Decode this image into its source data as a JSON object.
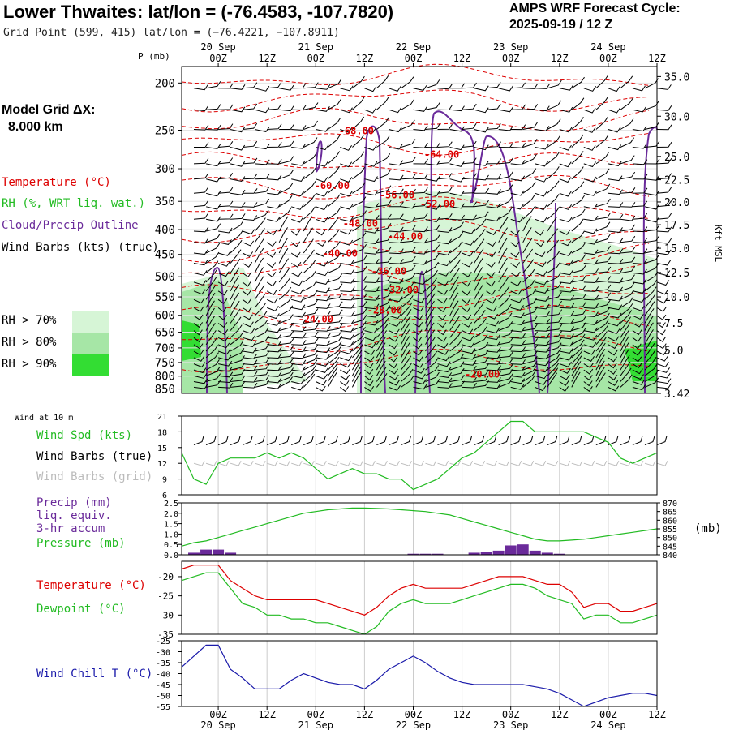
{
  "header": {
    "title": "Lower Thwaites:  lat/lon = (-76.4583, -107.7820)",
    "subtitle": "Grid Point (599, 415) lat/lon = (−76.4221, −107.8911)",
    "cycle_title": "AMPS WRF Forecast Cycle:",
    "cycle_value": "2025-09-19 / 12  Z",
    "grid_label": "Model Grid ΔX:",
    "grid_value": "8.000 km"
  },
  "legend": {
    "temperature": "Temperature (°C)",
    "rh": "RH (%, WRT liq. wat.)",
    "cloud": "Cloud/Precip Outline",
    "wind": "Wind Barbs (kts) (true)",
    "rh70": "RH > 70%",
    "rh80": "RH > 80%",
    "rh90": "RH > 90%"
  },
  "colors": {
    "temperature": "#dd0000",
    "rh": "#22bb22",
    "cloud": "#6a2a9a",
    "windchill": "#1a1aaa",
    "rh70": "#d6f5d6",
    "rh80": "#a6e6a6",
    "rh90": "#33dd33"
  },
  "time_axis": {
    "ticks": [
      "00Z",
      "12Z",
      "00Z",
      "12Z",
      "00Z",
      "12Z",
      "00Z",
      "12Z",
      "00Z",
      "12Z"
    ],
    "tick_hours": [
      12,
      24,
      36,
      48,
      60,
      72,
      84,
      96,
      108,
      120
    ],
    "dates_top": [
      "20 Sep",
      "21 Sep",
      "22 Sep",
      "23 Sep",
      "24 Sep"
    ],
    "dates_bottom": [
      "20 Sep",
      "21 Sep",
      "22 Sep",
      "23 Sep",
      "24 Sep"
    ],
    "date_hours": [
      12,
      36,
      60,
      84,
      108
    ],
    "range_hours": [
      3,
      120
    ]
  },
  "chart_data": [
    {
      "type": "heatmap",
      "ylabel": "P (mb)",
      "y2label": "Kft MSL",
      "pressure_ticks": [
        200,
        250,
        300,
        350,
        400,
        450,
        500,
        550,
        600,
        650,
        700,
        750,
        800,
        850
      ],
      "height_ticks": [
        "35.0",
        "30.0",
        "25.0",
        "22.5",
        "20.0",
        "17.5",
        "15.0",
        "12.5",
        "10.0",
        "7.5",
        "5.0",
        "3.42"
      ],
      "height_tick_pressure": [
        194,
        234,
        283,
        316,
        351,
        391,
        437,
        490,
        550,
        622,
        707,
        868
      ],
      "ylim": [
        185,
        868
      ],
      "temperature_labels": [
        {
          "text": "-68.00",
          "hour": 46,
          "p": 255
        },
        {
          "text": "-64.00",
          "hour": 67,
          "p": 285
        },
        {
          "text": "-60.00",
          "hour": 40,
          "p": 330
        },
        {
          "text": "-56.00",
          "hour": 56,
          "p": 345
        },
        {
          "text": "-52.00",
          "hour": 66,
          "p": 360
        },
        {
          "text": "-48.00",
          "hour": 47,
          "p": 395
        },
        {
          "text": "-44.00",
          "hour": 58,
          "p": 420
        },
        {
          "text": "-40.00",
          "hour": 42,
          "p": 455
        },
        {
          "text": "-36.00",
          "hour": 54,
          "p": 495
        },
        {
          "text": "-32.00",
          "hour": 57,
          "p": 540
        },
        {
          "text": "-28.00",
          "hour": 53,
          "p": 595
        },
        {
          "text": "-24.00",
          "hour": 36,
          "p": 620
        },
        {
          "text": "-20.00",
          "hour": 77,
          "p": 805
        }
      ]
    },
    {
      "type": "line",
      "series": [
        {
          "name": "Wind Spd (kts)",
          "color": "#22bb22",
          "x": [
            3,
            6,
            9,
            12,
            15,
            18,
            21,
            24,
            27,
            30,
            33,
            36,
            39,
            42,
            45,
            48,
            51,
            54,
            57,
            60,
            63,
            66,
            69,
            72,
            75,
            78,
            81,
            84,
            87,
            90,
            93,
            96,
            99,
            102,
            105,
            108,
            111,
            114,
            117,
            120
          ],
          "values": [
            14,
            9,
            8,
            12,
            13,
            13,
            13,
            14,
            13,
            14,
            13,
            11,
            9,
            10,
            11,
            10,
            10,
            9,
            9,
            7,
            8,
            9,
            11,
            13,
            14,
            16,
            18,
            20,
            20,
            18,
            18,
            18,
            18,
            18,
            17,
            16,
            13,
            12,
            13,
            14
          ]
        }
      ],
      "wind_label_small": "Wind at 10 m",
      "labels": [
        "Wind Spd (kts)",
        "Wind Barbs (true)",
        "Wind Barbs (grid)"
      ],
      "yticks": [
        6,
        9,
        12,
        15,
        18,
        21
      ],
      "ylim": [
        6,
        21
      ]
    },
    {
      "type": "bar",
      "labels": [
        "Precip (mm)",
        "liq. equiv.",
        "3-hr accum",
        "Pressure (mb)"
      ],
      "ylabel": "(mb)",
      "precip_x": [
        6,
        9,
        12,
        15,
        60,
        63,
        66,
        75,
        78,
        81,
        84,
        87,
        90,
        93,
        96
      ],
      "precip_values": [
        0.1,
        0.25,
        0.25,
        0.1,
        0.05,
        0.05,
        0.05,
        0.1,
        0.15,
        0.2,
        0.45,
        0.5,
        0.2,
        0.1,
        0.05
      ],
      "pressure": {
        "x": [
          3,
          6,
          9,
          12,
          15,
          18,
          21,
          24,
          27,
          30,
          33,
          36,
          39,
          42,
          45,
          48,
          51,
          54,
          57,
          60,
          63,
          66,
          69,
          72,
          75,
          78,
          81,
          84,
          87,
          90,
          93,
          96,
          99,
          102,
          105,
          108,
          111,
          114,
          117,
          120
        ],
        "values": [
          845,
          847,
          848,
          850,
          852,
          854,
          856,
          858,
          860,
          862,
          864,
          865,
          866,
          866.5,
          867,
          867,
          866.8,
          866.5,
          866,
          865.5,
          865,
          864,
          863,
          861,
          859,
          857,
          855,
          853,
          851,
          849,
          848,
          848,
          848.5,
          849,
          850,
          851,
          852,
          853,
          854,
          855
        ]
      },
      "yticks": [
        0.0,
        0.5,
        1.0,
        1.5,
        2.0,
        2.5
      ],
      "ylim": [
        0,
        2.5
      ],
      "y2ticks": [
        840,
        845,
        850,
        855,
        860,
        865,
        870
      ],
      "y2lim": [
        840,
        870
      ]
    },
    {
      "type": "line",
      "series": [
        {
          "name": "Temperature (°C)",
          "color": "#dd0000",
          "x": [
            3,
            6,
            9,
            12,
            15,
            18,
            21,
            24,
            27,
            30,
            33,
            36,
            39,
            42,
            45,
            48,
            51,
            54,
            57,
            60,
            63,
            66,
            69,
            72,
            75,
            78,
            81,
            84,
            87,
            90,
            93,
            96,
            99,
            102,
            105,
            108,
            111,
            114,
            117,
            120
          ],
          "values": [
            -18,
            -17,
            -17,
            -17,
            -21,
            -23,
            -25,
            -26,
            -26,
            -26,
            -26,
            -26,
            -27,
            -28,
            -29,
            -30,
            -28,
            -25,
            -23,
            -22,
            -23,
            -23,
            -23,
            -23,
            -22,
            -21,
            -20,
            -20,
            -20,
            -21,
            -22,
            -22,
            -24,
            -28,
            -27,
            -27,
            -29,
            -29,
            -28,
            -27
          ]
        },
        {
          "name": "Dewpoint (°C)",
          "color": "#22bb22",
          "x": [
            3,
            6,
            9,
            12,
            15,
            18,
            21,
            24,
            27,
            30,
            33,
            36,
            39,
            42,
            45,
            48,
            51,
            54,
            57,
            60,
            63,
            66,
            69,
            72,
            75,
            78,
            81,
            84,
            87,
            90,
            93,
            96,
            99,
            102,
            105,
            108,
            111,
            114,
            117,
            120
          ],
          "values": [
            -21,
            -20,
            -19,
            -19,
            -23,
            -27,
            -28,
            -30,
            -30,
            -31,
            -31,
            -32,
            -32,
            -33,
            -34,
            -35,
            -33,
            -29,
            -27,
            -26,
            -27,
            -27,
            -27,
            -26,
            -25,
            -24,
            -23,
            -22,
            -22,
            -23,
            -25,
            -26,
            -27,
            -31,
            -30,
            -30,
            -32,
            -32,
            -31,
            -30
          ]
        }
      ],
      "yticks": [
        -35,
        -30,
        -25,
        -20
      ],
      "ylim": [
        -35,
        -16
      ]
    },
    {
      "type": "line",
      "series": [
        {
          "name": "Wind Chill T (°C)",
          "color": "#1a1aaa",
          "x": [
            3,
            6,
            9,
            12,
            15,
            18,
            21,
            24,
            27,
            30,
            33,
            36,
            39,
            42,
            45,
            48,
            51,
            54,
            57,
            60,
            63,
            66,
            69,
            72,
            75,
            78,
            81,
            84,
            87,
            90,
            93,
            96,
            99,
            102,
            105,
            108,
            111,
            114,
            117,
            120
          ],
          "values": [
            -37,
            -32,
            -27,
            -27,
            -38,
            -42,
            -47,
            -47,
            -47,
            -43,
            -40,
            -42,
            -44,
            -45,
            -45,
            -47,
            -43,
            -38,
            -35,
            -32,
            -35,
            -39,
            -42,
            -44,
            -45,
            -45,
            -45,
            -45,
            -45,
            -46,
            -47,
            -49,
            -52,
            -55,
            -53,
            -51,
            -50,
            -49,
            -49,
            -50
          ]
        }
      ],
      "yticks": [
        -55,
        -50,
        -45,
        -40,
        -35,
        -30,
        -25
      ],
      "ylim": [
        -55,
        -25
      ]
    }
  ]
}
